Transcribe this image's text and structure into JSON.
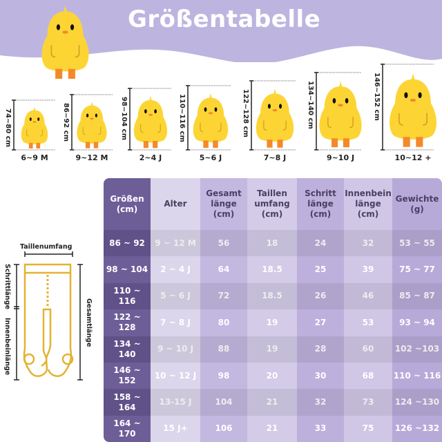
{
  "title": "Größentabelle",
  "colors": {
    "header_band": "#bdb5e0",
    "chick": "#fcd535",
    "feet": "#f5892a",
    "table_key_column": "#6d5e98"
  },
  "size_chart": [
    {
      "height": "74~80 cm",
      "age": "6~9 M"
    },
    {
      "height": "86~92 cm",
      "age": "9~12 M"
    },
    {
      "height": "98~104 cm",
      "age": "2~4 J"
    },
    {
      "height": "110~116 cm",
      "age": "5~6 J"
    },
    {
      "height": "122~128 cm",
      "age": "7~8 J"
    },
    {
      "height": "134~140 cm",
      "age": "9~10 J"
    },
    {
      "height": "146~152 cm",
      "age": "10~12 +"
    }
  ],
  "diagram": {
    "waist": "Taillenumfang",
    "rise": "Schrittlänge",
    "inseam": "Innenbeinlänge",
    "total": "Gesamtlänge"
  },
  "table": {
    "headers": [
      "Größen\n(cm)",
      "Alter",
      "Gesamt\nlänge\n(cm)",
      "Taillen\numfang\n(cm)",
      "Schritt\nlänge\n(cm)",
      "Innenbein\nlänge\n(cm)",
      "Gewichte\n(g)"
    ],
    "rows": [
      [
        "86 ~ 92",
        "9 ~ 12 M",
        "56",
        "18",
        "24",
        "32",
        "53 ~ 55"
      ],
      [
        "98 ~ 104",
        "2 ~ 4 J",
        "64",
        "18.5",
        "25",
        "39",
        "75 ~ 77"
      ],
      [
        "110 ~ 116",
        "5 ~ 6 J",
        "72",
        "18.5",
        "26",
        "46",
        "85 ~ 87"
      ],
      [
        "122 ~ 128",
        "7 ~ 8 J",
        "80",
        "19",
        "27",
        "53",
        "93 ~ 94"
      ],
      [
        "134 ~ 140",
        "9 ~ 10 J",
        "88",
        "19",
        "28",
        "60",
        "102 ~103"
      ],
      [
        "146 ~ 152",
        "10 ~ 12 J",
        "98",
        "20",
        "30",
        "68",
        "110 ~ 116"
      ],
      [
        "158 ~ 164",
        "13-15 J",
        "104",
        "21",
        "32",
        "73",
        "124 ~130"
      ],
      [
        "164 ~ 170",
        "15 J+",
        "106",
        "21",
        "33",
        "75",
        "126 ~132"
      ]
    ]
  }
}
